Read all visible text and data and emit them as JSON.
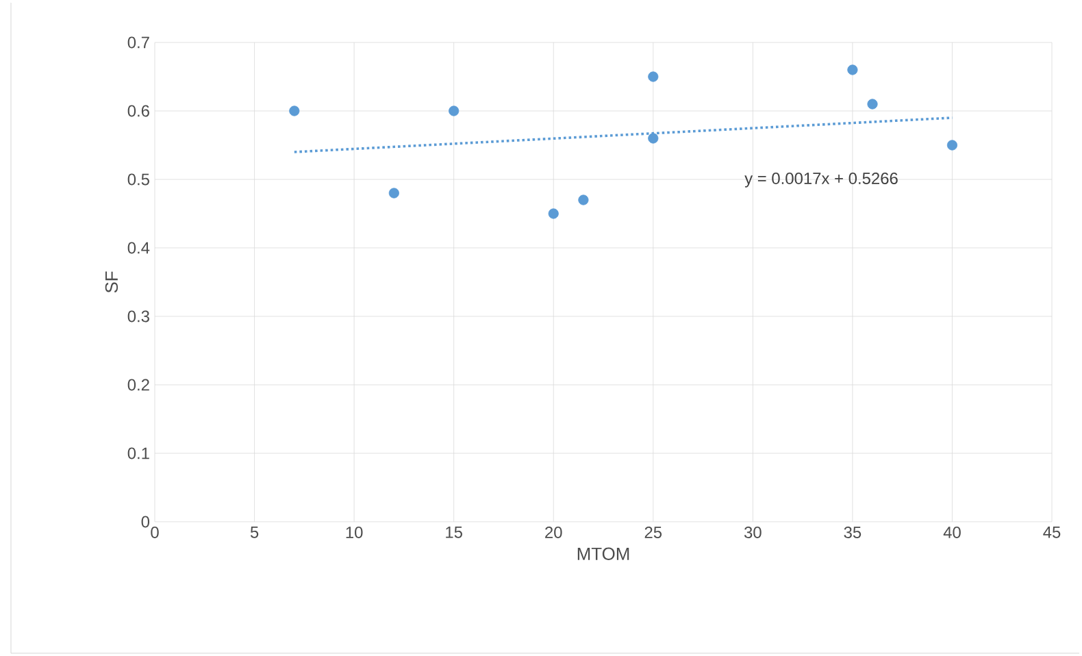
{
  "chart_data": {
    "type": "scatter",
    "xlabel": "MTOM",
    "ylabel": "SF",
    "series": [
      {
        "color": "#5b9bd5",
        "marker": "circle",
        "x": [
          7,
          12,
          15,
          20,
          21.5,
          25,
          25,
          35,
          36,
          40
        ],
        "values": [
          0.6,
          0.48,
          0.6,
          0.45,
          0.47,
          0.65,
          0.56,
          0.66,
          0.61,
          0.55
        ]
      },
      {
        "type": "line",
        "color": "#5b9bd5",
        "line_style": "dotted",
        "marker": "none",
        "x": [
          7,
          40
        ],
        "values": [
          0.54,
          0.59
        ]
      }
    ],
    "annotations": [
      "y = 0.0017x + 0.5266"
    ],
    "xlim": [
      0,
      45
    ],
    "xticks": [
      0,
      5,
      10,
      15,
      20,
      25,
      30,
      35,
      40,
      45
    ],
    "ylim": [
      0,
      0.7
    ],
    "yticks": [
      0,
      0.1,
      0.2,
      0.3,
      0.4,
      0.5,
      0.6,
      0.7
    ],
    "grid": true
  }
}
